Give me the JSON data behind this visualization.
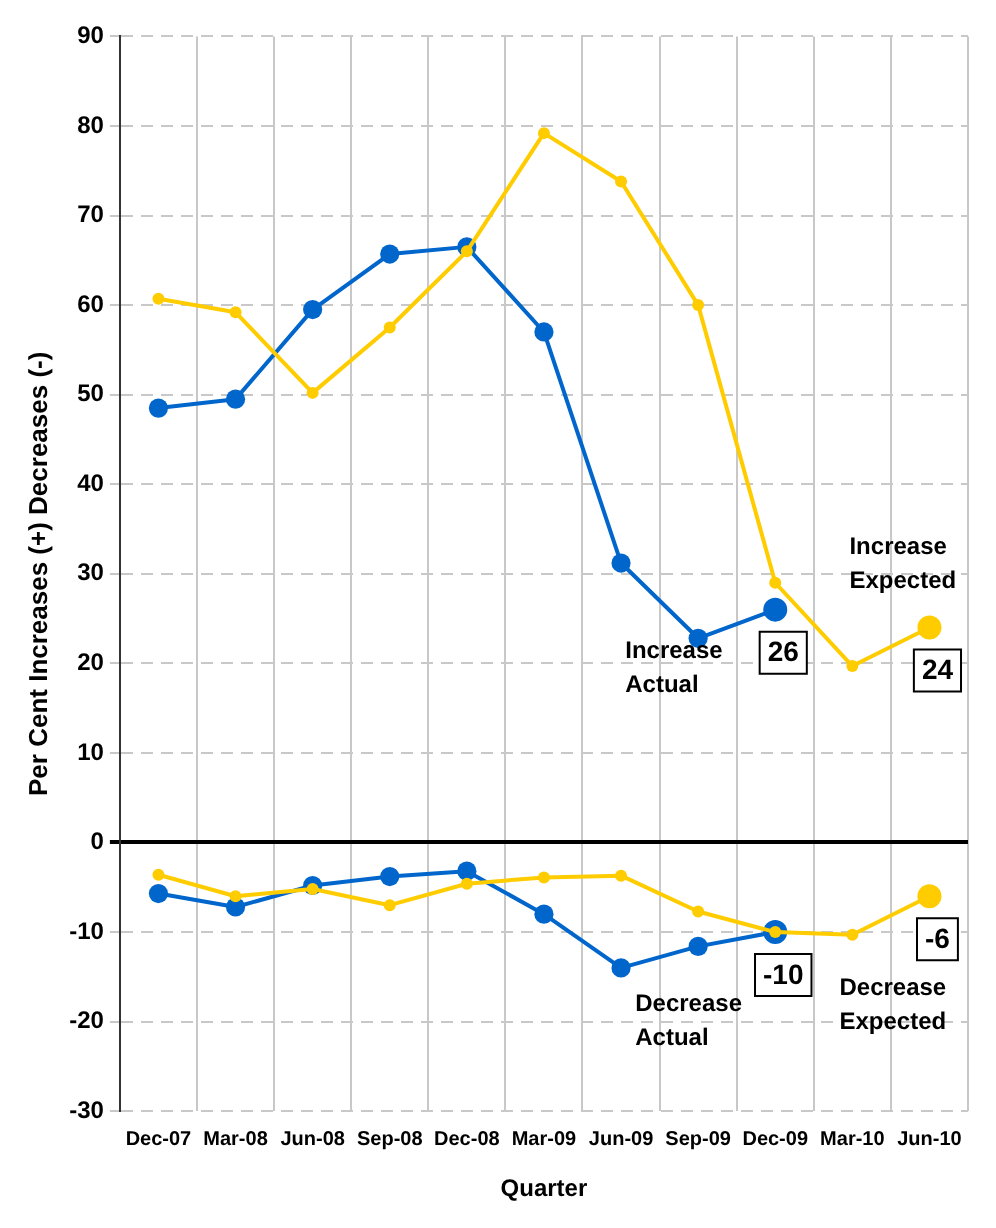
{
  "chart_data": {
    "type": "line",
    "xlabel": "Quarter",
    "ylabel": "Per Cent Increases (+) Decreases (-)",
    "categories": [
      "Dec-07",
      "Mar-08",
      "Jun-08",
      "Sep-08",
      "Dec-08",
      "Mar-09",
      "Jun-09",
      "Sep-09",
      "Dec-09",
      "Mar-10",
      "Jun-10"
    ],
    "series": [
      {
        "name": "Increase Expected",
        "color": "#ffcc00",
        "values": [
          60.7,
          59.2,
          50.2,
          57.5,
          66,
          79.2,
          73.8,
          60,
          29,
          19.7,
          24
        ]
      },
      {
        "name": "Increase Actual",
        "color": "#0066cc",
        "values": [
          48.5,
          49.5,
          59.5,
          65.7,
          66.5,
          57,
          31.2,
          22.8,
          26,
          null,
          null
        ]
      },
      {
        "name": "Decrease Expected",
        "color": "#ffcc00",
        "values": [
          -3.6,
          -6,
          -5.2,
          -7,
          -4.6,
          -3.9,
          -3.7,
          -7.7,
          -10,
          -10.3,
          -6
        ]
      },
      {
        "name": "Decrease Actual",
        "color": "#0066cc",
        "values": [
          -5.7,
          -7.2,
          -4.8,
          -3.8,
          -3.2,
          -8,
          -14,
          -11.6,
          -10,
          null,
          null
        ]
      }
    ],
    "ylim": [
      -30,
      90
    ],
    "yticks": [
      -30,
      -20,
      -10,
      0,
      10,
      20,
      30,
      40,
      50,
      60,
      70,
      80,
      90
    ],
    "annotations": [
      {
        "text": "26",
        "x": "Dec-09",
        "y": 26
      },
      {
        "text": "24",
        "x": "Jun-10",
        "y": 24
      },
      {
        "text": "-10",
        "x": "Dec-09",
        "y": -10
      },
      {
        "text": "-6",
        "x": "Jun-10",
        "y": -6
      }
    ],
    "grid": true,
    "legend": false,
    "marker": "circle",
    "line_style": "solid"
  }
}
